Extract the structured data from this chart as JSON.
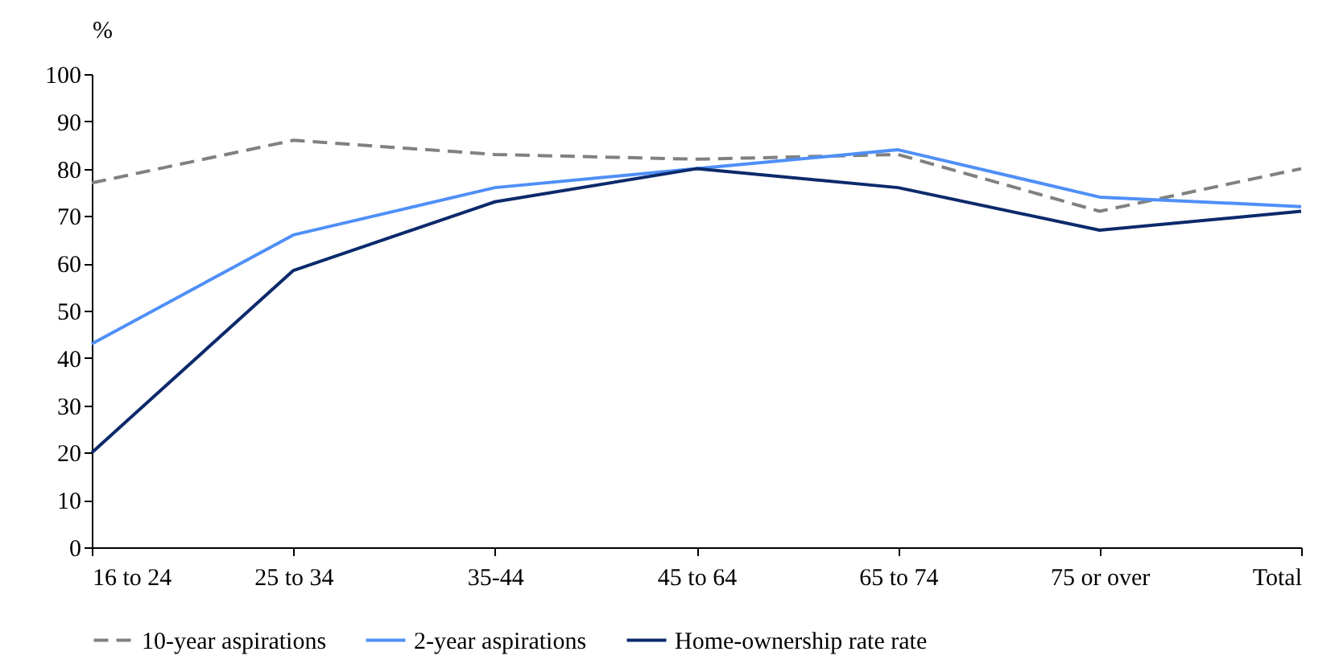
{
  "chart_data": {
    "type": "line",
    "ylabel": "%",
    "categories": [
      "16 to 24",
      "25 to 34",
      "35-44",
      "45 to 64",
      "65 to 74",
      "75 or over",
      "Total"
    ],
    "series": [
      {
        "name": "10-year aspirations",
        "color": "#808080",
        "line_style": "dashed",
        "values": [
          77,
          86,
          83,
          82,
          83,
          71,
          80
        ]
      },
      {
        "name": "2-year aspirations",
        "color": "#4f8ff7",
        "line_style": "solid",
        "values": [
          43,
          66,
          76,
          80,
          84,
          74,
          72
        ]
      },
      {
        "name": "Home-ownership rate rate",
        "color": "#0c2a6b",
        "line_style": "solid",
        "values": [
          20,
          58.5,
          73,
          80,
          76,
          67,
          71
        ]
      }
    ],
    "ylim": [
      0,
      100
    ],
    "yticks": [
      0,
      10,
      20,
      30,
      40,
      50,
      60,
      70,
      80,
      90,
      100
    ],
    "grid": false,
    "legend": "bottom"
  }
}
